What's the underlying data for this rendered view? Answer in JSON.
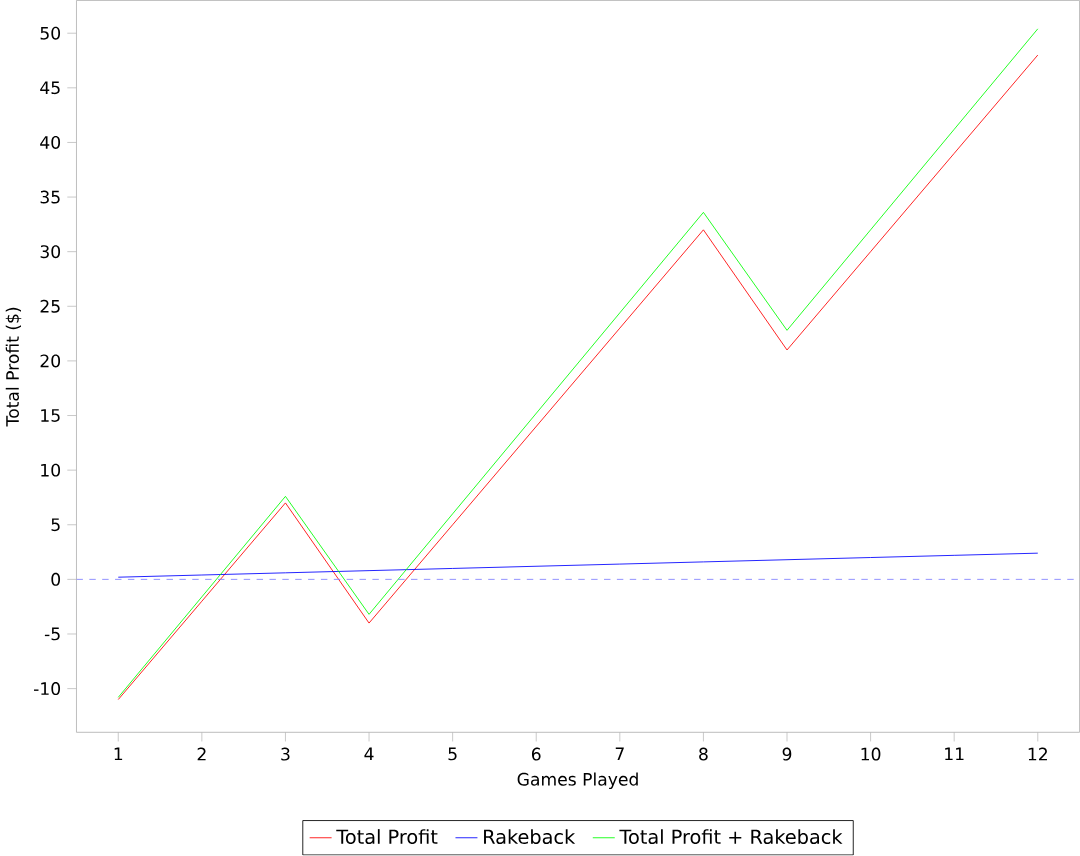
{
  "chart_data": {
    "type": "line",
    "xlabel": "Games Played",
    "ylabel": "Total Profit ($)",
    "x": [
      1,
      2,
      3,
      4,
      5,
      6,
      7,
      8,
      9,
      10,
      11,
      12
    ],
    "series": [
      {
        "name": "Total Profit",
        "color": "#ff0000",
        "values": [
          -11,
          -2,
          7,
          -4,
          5,
          14,
          23,
          32,
          21,
          30,
          39,
          48
        ]
      },
      {
        "name": "Rakeback",
        "color": "#0000ff",
        "values": [
          0.2,
          0.4,
          0.6,
          0.8,
          1.0,
          1.2,
          1.4,
          1.6,
          1.8,
          2.0,
          2.2,
          2.4
        ]
      },
      {
        "name": "Total Profit + Rakeback",
        "color": "#00ff00",
        "values": [
          -10.8,
          -1.6,
          7.6,
          -3.2,
          6,
          15.2,
          24.4,
          33.6,
          22.8,
          32,
          41.2,
          50.4
        ]
      }
    ],
    "xlim": [
      0.5,
      12.5
    ],
    "ylim": [
      -14,
      53
    ],
    "xticks": [
      1,
      2,
      3,
      4,
      5,
      6,
      7,
      8,
      9,
      10,
      11,
      12
    ],
    "yticks": [
      -10,
      -5,
      0,
      5,
      10,
      15,
      20,
      25,
      30,
      35,
      40,
      45,
      50
    ],
    "ref_lines": [
      {
        "axis": "y",
        "value": 0,
        "color": "#8080ff",
        "line_style": "dashed"
      }
    ],
    "legend": "bottom",
    "grid": false,
    "marker": "none",
    "line_style": "solid"
  }
}
